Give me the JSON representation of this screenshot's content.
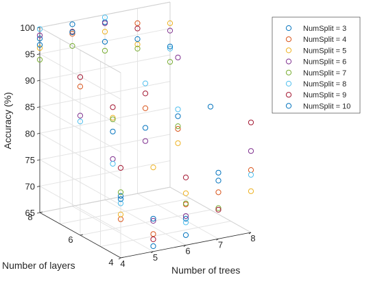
{
  "chart_data": {
    "type": "scatter",
    "title": "",
    "xlabel": "Number of trees",
    "ylabel": "Number of layers",
    "zlabel": "Accuracy (%)",
    "x_ticks": [
      "4",
      "5",
      "6",
      "7",
      "8"
    ],
    "y_ticks": [
      "4",
      "6",
      "8"
    ],
    "z_ticks": [
      "65",
      "70",
      "75",
      "80",
      "85",
      "90",
      "95",
      "100"
    ],
    "xlim": [
      4,
      8
    ],
    "ylim": [
      4,
      8
    ],
    "zlim": [
      65,
      100
    ],
    "grid": true,
    "legend_position": "top-right",
    "marker": "open-circle",
    "colors": [
      "#0072BD",
      "#D95319",
      "#EDB120",
      "#7E2F8E",
      "#77AC30",
      "#4DBEEE",
      "#A2142F",
      "#0072BD"
    ],
    "series": [
      {
        "name": "NumSplit = 3",
        "points": [
          [
            4,
            8,
            97.9
          ],
          [
            5,
            8,
            99.4
          ],
          [
            6,
            8,
            98.6
          ],
          [
            4,
            4,
            76.7
          ],
          [
            5,
            4,
            66.0
          ],
          [
            6,
            4,
            70.0
          ],
          [
            7,
            4,
            77.5
          ],
          [
            5,
            6,
            83.4
          ],
          [
            7,
            6,
            83.9
          ],
          [
            8,
            6,
            84.5
          ]
        ]
      },
      {
        "name": "NumSplit = 4",
        "points": [
          [
            5,
            8,
            97.6
          ],
          [
            7,
            8,
            97.2
          ],
          [
            4,
            4,
            72.3
          ],
          [
            5,
            4,
            68.3
          ],
          [
            6,
            4,
            72.7
          ],
          [
            7,
            4,
            73.8
          ],
          [
            8,
            4,
            76.8
          ],
          [
            6,
            6,
            86.6
          ],
          [
            7,
            6,
            81.5
          ],
          [
            4,
            6,
            93.1
          ]
        ]
      },
      {
        "name": "NumSplit = 5",
        "points": [
          [
            4,
            8,
            96.1
          ],
          [
            6,
            8,
            96.8
          ],
          [
            8,
            8,
            96.0
          ],
          [
            4,
            4,
            73.2
          ],
          [
            6,
            4,
            74.8
          ],
          [
            8,
            4,
            72.8
          ],
          [
            5,
            6,
            86.0
          ],
          [
            7,
            6,
            78.8
          ],
          [
            5,
            4,
            80.9
          ],
          [
            7,
            8,
            93.2
          ]
        ]
      },
      {
        "name": "NumSplit = 6",
        "points": [
          [
            4,
            8,
            98.5
          ],
          [
            6,
            8,
            98.4
          ],
          [
            8,
            8,
            94.6
          ],
          [
            5,
            4,
            70.8
          ],
          [
            6,
            4,
            70.5
          ],
          [
            8,
            4,
            80.4
          ],
          [
            4,
            6,
            87.6
          ],
          [
            5,
            6,
            78.2
          ],
          [
            6,
            6,
            80.4
          ],
          [
            7,
            6,
            95.0
          ]
        ]
      },
      {
        "name": "NumSplit = 7",
        "points": [
          [
            4,
            8,
            93.9
          ],
          [
            5,
            8,
            95.3
          ],
          [
            6,
            8,
            93.2
          ],
          [
            7,
            8,
            92.4
          ],
          [
            8,
            8,
            88.7
          ],
          [
            4,
            4,
            77.4
          ],
          [
            6,
            4,
            72.9
          ],
          [
            7,
            4,
            70.8
          ],
          [
            5,
            6,
            85.7
          ],
          [
            7,
            6,
            82.0
          ]
        ]
      },
      {
        "name": "NumSplit = 8",
        "points": [
          [
            4,
            8,
            99.7
          ],
          [
            6,
            8,
            99.5
          ],
          [
            8,
            8,
            91.2
          ],
          [
            4,
            4,
            75.3
          ],
          [
            6,
            4,
            69.3
          ],
          [
            8,
            4,
            75.9
          ],
          [
            4,
            6,
            86.5
          ],
          [
            5,
            6,
            77.3
          ],
          [
            6,
            6,
            91.3
          ],
          [
            7,
            6,
            85.2
          ]
        ]
      },
      {
        "name": "NumSplit = 9",
        "points": [
          [
            5,
            8,
            98.0
          ],
          [
            7,
            8,
            96.2
          ],
          [
            4,
            4,
            82.0
          ],
          [
            5,
            4,
            67.3
          ],
          [
            6,
            4,
            77.8
          ],
          [
            7,
            4,
            70.5
          ],
          [
            8,
            4,
            85.8
          ],
          [
            4,
            6,
            94.9
          ],
          [
            5,
            6,
            88.0
          ],
          [
            6,
            6,
            89.4
          ]
        ]
      },
      {
        "name": "NumSplit = 10",
        "points": [
          [
            4,
            8,
            96.7
          ],
          [
            5,
            8,
            97.9
          ],
          [
            6,
            8,
            94.9
          ],
          [
            7,
            8,
            94.2
          ],
          [
            8,
            8,
            91.6
          ],
          [
            4,
            4,
            76.1
          ],
          [
            5,
            4,
            71.2
          ],
          [
            6,
            4,
            66.9
          ],
          [
            7,
            4,
            76.0
          ],
          [
            6,
            6,
            82.9
          ]
        ]
      }
    ]
  }
}
